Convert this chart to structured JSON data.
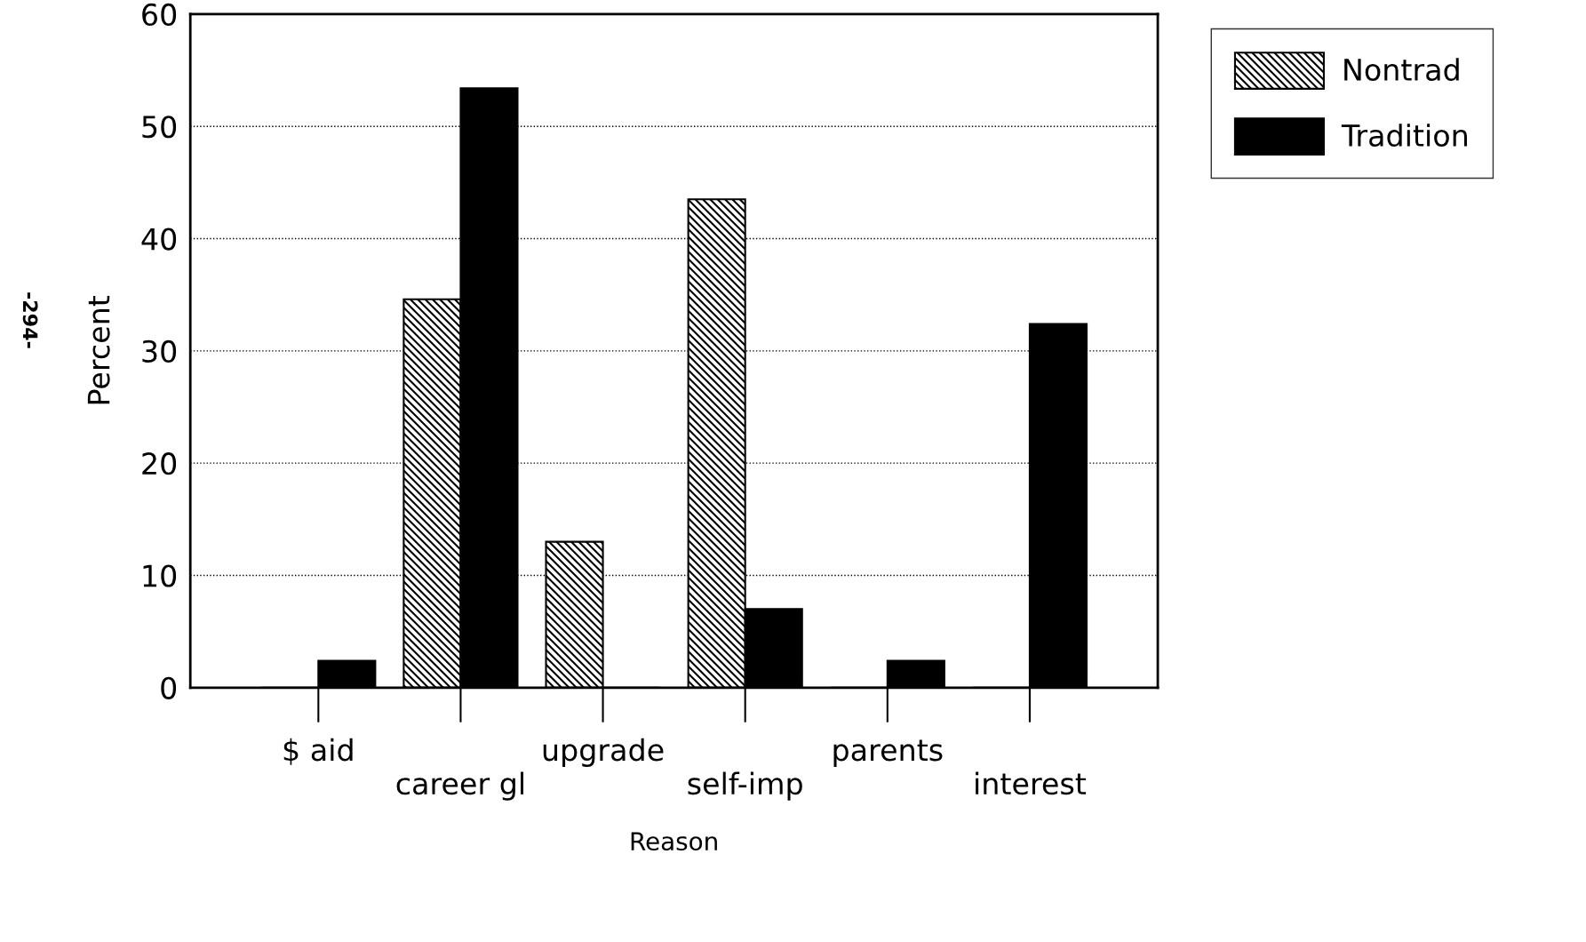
{
  "chart_data": {
    "type": "bar",
    "xlabel": "Reason",
    "ylabel": "Percent",
    "categories": [
      "$ aid",
      "career gl",
      "upgrade",
      "self-imp",
      "parents",
      "interest"
    ],
    "series": [
      {
        "name": "Nontrad",
        "color": "#000000",
        "values": [
          0,
          34.6,
          13,
          43.5,
          0,
          0
        ]
      },
      {
        "name": "Tradition",
        "color": "#000000",
        "values": [
          2.4,
          53.4,
          0,
          7,
          2.4,
          32.4
        ]
      }
    ],
    "ylim": [
      0,
      60
    ],
    "yticks": [
      0,
      10,
      20,
      30,
      40,
      50,
      60
    ],
    "grid": "y",
    "legend": "top right",
    "annotations": [
      "-294-"
    ]
  }
}
